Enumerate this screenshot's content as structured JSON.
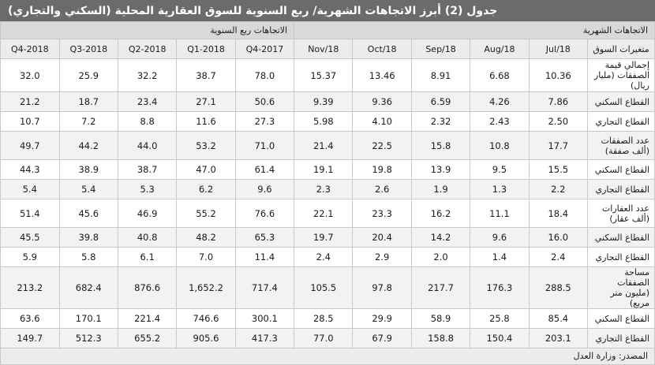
{
  "title": "جدول (2) أبرز الاتجاهات الشهرية/ ربع السنوية للسوق العقارية المحلية (السكني والتجاري)",
  "groups": {
    "monthly": "الاتجاهات الشهرية",
    "quarterly": "الاتجاهات ربع السنوية"
  },
  "headers": {
    "variable": "متغيرات السوق",
    "months": [
      "Jul/18",
      "Aug/18",
      "Sep/18",
      "Oct/18",
      "Nov/18"
    ],
    "quarters": [
      "2017-Q4",
      "2018-Q1",
      "2018-Q2",
      "2018-Q3",
      "2018-Q4"
    ]
  },
  "rows": [
    {
      "label": "إجمالي قيمة الصفقات (مليار ريال)",
      "monthly": [
        "10.36",
        "6.68",
        "8.91",
        "13.46",
        "15.37"
      ],
      "quarterly": [
        "78.0",
        "38.7",
        "32.2",
        "25.9",
        "32.0"
      ]
    },
    {
      "label": "القطاع السكني",
      "monthly": [
        "7.86",
        "4.26",
        "6.59",
        "9.36",
        "9.39"
      ],
      "quarterly": [
        "50.6",
        "27.1",
        "23.4",
        "18.7",
        "21.2"
      ]
    },
    {
      "label": "القطاع التجاري",
      "monthly": [
        "2.50",
        "2.43",
        "2.32",
        "4.10",
        "5.98"
      ],
      "quarterly": [
        "27.3",
        "11.6",
        "8.8",
        "7.2",
        "10.7"
      ]
    },
    {
      "label": "عدد الصفقات (ألف صفقة)",
      "monthly": [
        "17.7",
        "10.8",
        "15.8",
        "22.5",
        "21.4"
      ],
      "quarterly": [
        "71.0",
        "53.2",
        "44.0",
        "44.2",
        "49.7"
      ]
    },
    {
      "label": "القطاع السكني",
      "monthly": [
        "15.5",
        "9.5",
        "13.9",
        "19.8",
        "19.1"
      ],
      "quarterly": [
        "61.4",
        "47.0",
        "38.7",
        "38.9",
        "44.3"
      ]
    },
    {
      "label": "القطاع التجاري",
      "monthly": [
        "2.2",
        "1.3",
        "1.9",
        "2.6",
        "2.3"
      ],
      "quarterly": [
        "9.6",
        "6.2",
        "5.3",
        "5.4",
        "5.4"
      ]
    },
    {
      "label": "عدد العقارات (ألف عقار)",
      "monthly": [
        "18.4",
        "11.1",
        "16.2",
        "23.3",
        "22.1"
      ],
      "quarterly": [
        "76.6",
        "55.2",
        "46.9",
        "45.6",
        "51.4"
      ]
    },
    {
      "label": "القطاع السكني",
      "monthly": [
        "16.0",
        "9.6",
        "14.2",
        "20.4",
        "19.7"
      ],
      "quarterly": [
        "65.3",
        "48.2",
        "40.8",
        "39.8",
        "45.5"
      ]
    },
    {
      "label": "القطاع التجاري",
      "monthly": [
        "2.4",
        "1.4",
        "2.0",
        "2.9",
        "2.4"
      ],
      "quarterly": [
        "11.4",
        "7.0",
        "6.1",
        "5.8",
        "5.9"
      ]
    },
    {
      "label": "مساحة الصفقات (مليون متر مربع)",
      "monthly": [
        "288.5",
        "176.3",
        "217.7",
        "97.8",
        "105.5"
      ],
      "quarterly": [
        "717.4",
        "1,652.2",
        "876.6",
        "682.4",
        "213.2"
      ]
    },
    {
      "label": "القطاع السكني",
      "monthly": [
        "85.4",
        "25.8",
        "58.9",
        "29.9",
        "28.5"
      ],
      "quarterly": [
        "300.1",
        "746.6",
        "221.4",
        "170.1",
        "63.6"
      ]
    },
    {
      "label": "القطاع التجاري",
      "monthly": [
        "203.1",
        "150.4",
        "158.8",
        "67.9",
        "77.0"
      ],
      "quarterly": [
        "417.3",
        "905.6",
        "655.2",
        "512.3",
        "149.7"
      ]
    }
  ],
  "source": "المصدر: وزارة العدل"
}
